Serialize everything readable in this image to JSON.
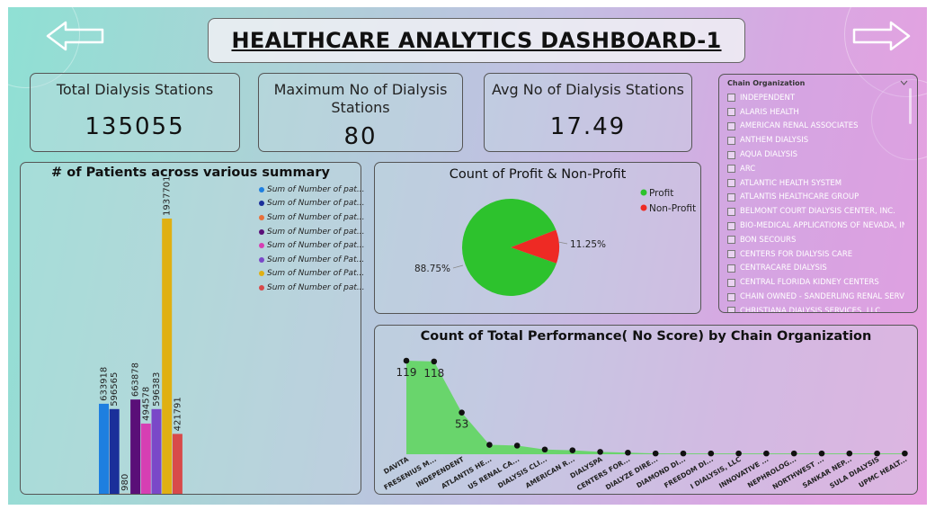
{
  "header": {
    "title": "HEALTHCARE ANALYTICS DASHBOARD-1",
    "back_icon": "arrow-left-icon",
    "forward_icon": "arrow-right-icon"
  },
  "kpis": [
    {
      "label": "Total Dialysis Stations",
      "value": "135055"
    },
    {
      "label": "Maximum No of Dialysis Stations",
      "value": "80"
    },
    {
      "label": "Avg No of Dialysis Stations",
      "value": "17.49"
    }
  ],
  "slicer": {
    "title": "Chain Organization",
    "items": [
      "INDEPENDENT",
      "ALARIS HEALTH",
      "AMERICAN RENAL ASSOCIATES",
      "ANTHEM DIALYSIS",
      "AQUA DIALYSIS",
      "ARC",
      "ATLANTIC HEALTH SYSTEM",
      "ATLANTIS HEALTHCARE GROUP",
      "BELMONT COURT DIALYSIS CENTER, INC.",
      "BIO-MEDICAL APPLICATIONS OF NEVADA, INC",
      "BON SECOURS",
      "CENTERS FOR DIALYSIS CARE",
      "CENTRACARE DIALYSIS",
      "CENTRAL FLORIDA KIDNEY CENTERS",
      "CHAIN OWNED - SANDERLING RENAL SERVICES",
      "CHRISTIANA DIALYSIS SERVICES, LLC"
    ]
  },
  "chart_data": [
    {
      "type": "bar",
      "title": "# of Patients across various summary",
      "series": [
        {
          "name": "Sum of Number of pat...",
          "value": 633918,
          "label": "633918",
          "color": "#1e7fe0"
        },
        {
          "name": "Sum of Number of pat...",
          "value": 596565,
          "label": "596565",
          "color": "#1a2f9a"
        },
        {
          "name": "Sum of Number of pat...",
          "value": 980,
          "label": "980",
          "color": "#e8703a"
        },
        {
          "name": "Sum of Number of pat...",
          "value": 663878,
          "label": "663878",
          "color": "#5a0f78"
        },
        {
          "name": "Sum of Number of pat...",
          "value": 494578,
          "label": "494578",
          "color": "#d63fb3"
        },
        {
          "name": "Sum of Number of Pat...",
          "value": 596383,
          "label": "596383",
          "color": "#7a48c8"
        },
        {
          "name": "Sum of Number of Pat...",
          "value": 1937701,
          "label": "1937701",
          "color": "#e0b012"
        },
        {
          "name": "Sum of Number of pat...",
          "value": 421791,
          "label": "421791",
          "color": "#d84a4a"
        }
      ],
      "ylim": [
        0,
        1937701
      ]
    },
    {
      "type": "pie",
      "title": "Count of Profit & Non-Profit",
      "slices": [
        {
          "name": "Profit",
          "value": 88.75,
          "label": "88.75%",
          "color": "#2dc22d"
        },
        {
          "name": "Non-Profit",
          "value": 11.25,
          "label": "11.25%",
          "color": "#ee2a24"
        }
      ],
      "legend": "top-right"
    },
    {
      "type": "area",
      "title": "Count of Total Performance( No Score) by Chain Organization",
      "categories": [
        "DAVITA",
        "FRESENIUS M...",
        "INDEPENDENT",
        "ATLANTIS HE...",
        "US RENAL CA...",
        "DIALYSIS CLI...",
        "AMERICAN R...",
        "DIALYSPA",
        "CENTERS FOR...",
        "DIALYZE DIRE...",
        "DIAMOND DI...",
        "FREEDOM DI...",
        "I DIALYSIS, LLC",
        "INNOVATIVE ...",
        "NEPHROLOG...",
        "NORTHWEST ...",
        "SANKAR NEP...",
        "SULA DIALYSIS",
        "UPMC HEALT..."
      ],
      "values": [
        119,
        118,
        53,
        12,
        11,
        6,
        5,
        3,
        2,
        1,
        1,
        1,
        1,
        1,
        1,
        1,
        1,
        1,
        1
      ],
      "data_labels": {
        "0": "119",
        "1": "118",
        "2": "53"
      },
      "color": "#5fd65f"
    }
  ]
}
